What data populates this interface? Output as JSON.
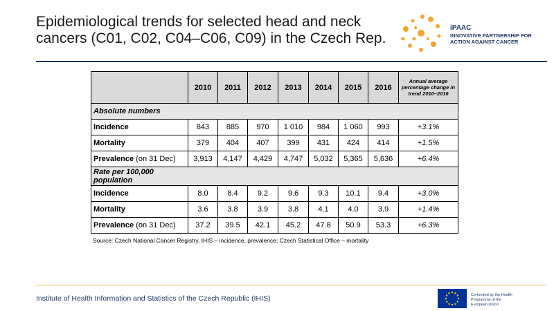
{
  "header": {
    "title": "Epidemiological trends for selected head and neck cancers (C01, C02, C04–C06, C09) in the Czech Rep."
  },
  "logo": {
    "name": "iPAAC",
    "tagline": "INNOVATIVE PARTNERSHIP FOR ACTION AGAINST CANCER"
  },
  "table": {
    "columns": [
      "2010",
      "2011",
      "2012",
      "2013",
      "2014",
      "2015",
      "2016",
      "Annual average percentage change in trend 2010–2016"
    ],
    "sections": [
      {
        "title": "Absolute numbers",
        "rows": [
          {
            "label": "Incidence",
            "cells": [
              "843",
              "885",
              "970",
              "1 010",
              "984",
              "1 060",
              "993",
              "+3.1%"
            ]
          },
          {
            "label": "Mortality",
            "cells": [
              "379",
              "404",
              "407",
              "399",
              "431",
              "424",
              "414",
              "+1.5%"
            ]
          },
          {
            "label": "Prevalence",
            "note": "(on 31 Dec)",
            "cells": [
              "3,913",
              "4,147",
              "4,429",
              "4,747",
              "5,032",
              "5,365",
              "5,636",
              "+6.4%"
            ]
          }
        ]
      },
      {
        "title": "Rate per 100,000 population",
        "rows": [
          {
            "label": "Incidence",
            "cells": [
              "8.0",
              "8.4",
              "9.2",
              "9.6",
              "9.3",
              "10.1",
              "9.4",
              "+3.0%"
            ]
          },
          {
            "label": "Mortality",
            "cells": [
              "3.6",
              "3.8",
              "3.9",
              "3.8",
              "4.1",
              "4.0",
              "3.9",
              "+1.4%"
            ]
          },
          {
            "label": "Prevalence",
            "note": "(on 31 Dec)",
            "cells": [
              "37.2",
              "39.5",
              "42.1",
              "45.2",
              "47.8",
              "50.9",
              "53.3",
              "+6.3%"
            ]
          }
        ]
      }
    ]
  },
  "source": "Source: Czech National Cancer Registry, IHIS – incidence, prevalence; Czech Statistical Office – mortality",
  "footer": {
    "institute": "Institute of Health Information and Statistics of the Czech Republic (IHIS)",
    "eu_note": "Co-funded by the Health Programme of the European Union"
  }
}
